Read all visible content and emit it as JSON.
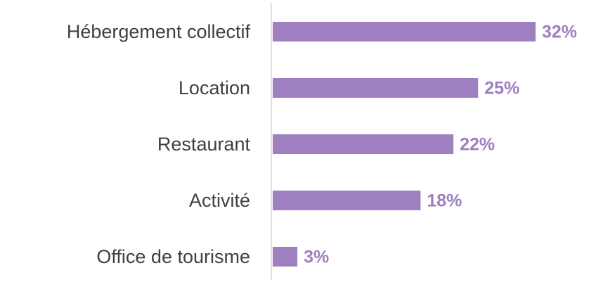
{
  "chart_data": {
    "type": "bar",
    "orientation": "horizontal",
    "categories": [
      "Hébergement collectif",
      "Location",
      "Restaurant",
      "Activité",
      "Office de tourisme"
    ],
    "values": [
      32,
      25,
      22,
      18,
      3
    ],
    "value_labels": [
      "32%",
      "25%",
      "22%",
      "18%",
      "3%"
    ],
    "color": "#9e7fbf"
  }
}
